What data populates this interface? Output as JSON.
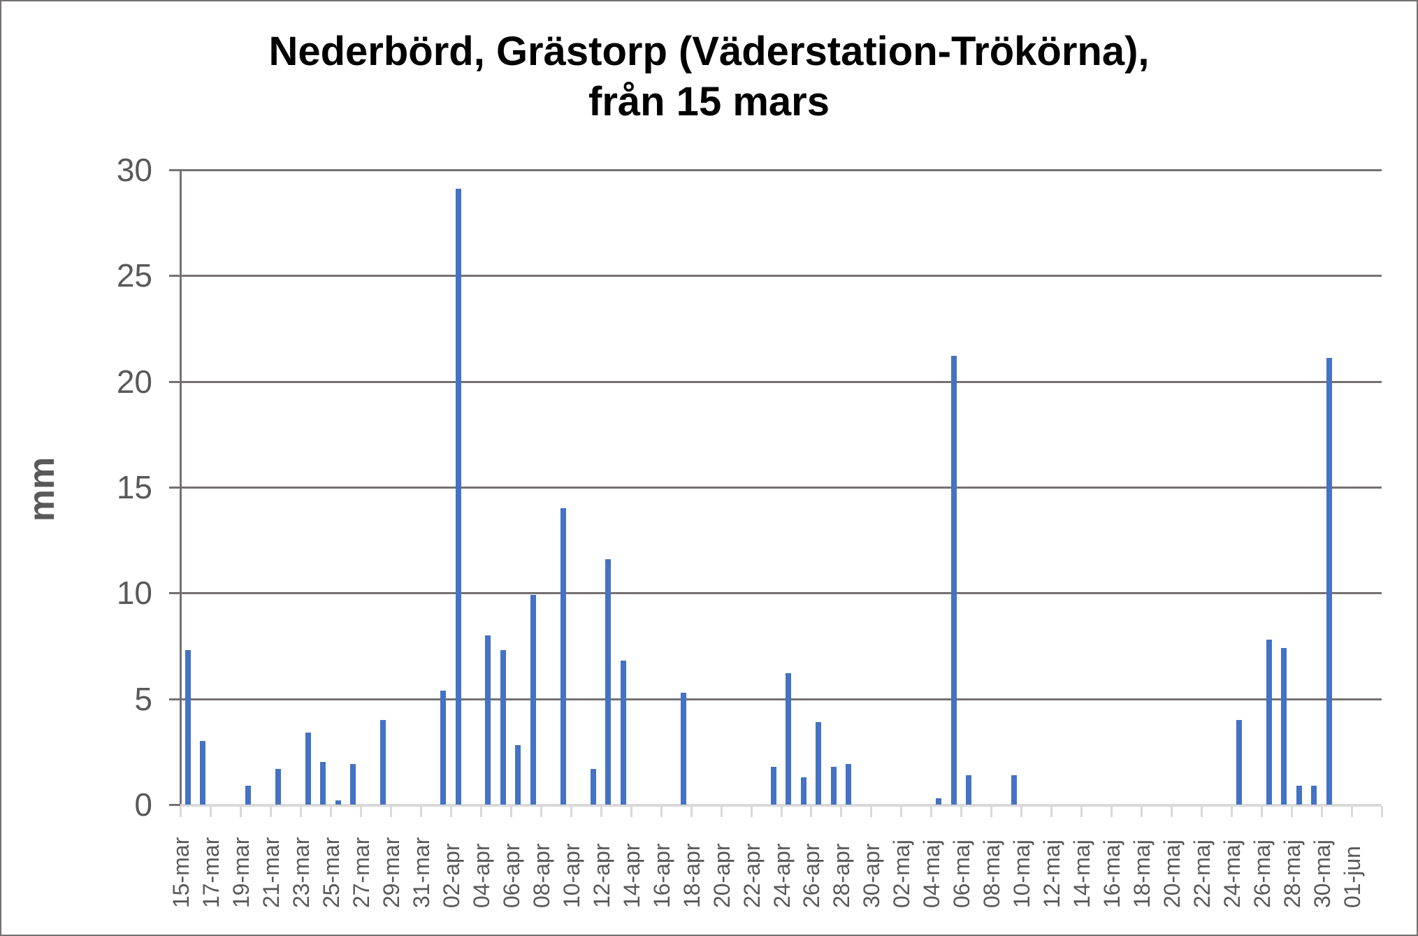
{
  "chart_data": {
    "type": "bar",
    "title": "Nederbörd, Grästorp (Väderstation-Trökörna),",
    "subtitle": "från 15 mars",
    "xlabel": "",
    "ylabel": "mm",
    "ylim": [
      0,
      30
    ],
    "yticks": [
      0,
      5,
      10,
      15,
      20,
      25,
      30
    ],
    "grid": true,
    "legend": null,
    "bar_color": "#4472c4",
    "x_tick_labels": [
      "15-mar",
      "17-mar",
      "19-mar",
      "21-mar",
      "23-mar",
      "25-mar",
      "27-mar",
      "29-mar",
      "31-mar",
      "02-apr",
      "04-apr",
      "06-apr",
      "08-apr",
      "10-apr",
      "12-apr",
      "14-apr",
      "16-apr",
      "18-apr",
      "20-apr",
      "22-apr",
      "24-apr",
      "26-apr",
      "28-apr",
      "30-apr",
      "02-maj",
      "04-maj",
      "06-maj",
      "08-maj",
      "10-maj",
      "12-maj",
      "14-maj",
      "16-maj",
      "18-maj",
      "20-maj",
      "22-maj",
      "24-maj",
      "26-maj",
      "28-maj",
      "30-maj",
      "01-jun"
    ],
    "categories": [
      "15-mar",
      "16-mar",
      "17-mar",
      "18-mar",
      "19-mar",
      "20-mar",
      "21-mar",
      "22-mar",
      "23-mar",
      "24-mar",
      "25-mar",
      "26-mar",
      "27-mar",
      "28-mar",
      "29-mar",
      "30-mar",
      "31-mar",
      "01-apr",
      "02-apr",
      "03-apr",
      "04-apr",
      "05-apr",
      "06-apr",
      "07-apr",
      "08-apr",
      "09-apr",
      "10-apr",
      "11-apr",
      "12-apr",
      "13-apr",
      "14-apr",
      "15-apr",
      "16-apr",
      "17-apr",
      "18-apr",
      "19-apr",
      "20-apr",
      "21-apr",
      "22-apr",
      "23-apr",
      "24-apr",
      "25-apr",
      "26-apr",
      "27-apr",
      "28-apr",
      "29-apr",
      "30-apr",
      "01-maj",
      "02-maj",
      "03-maj",
      "04-maj",
      "05-maj",
      "06-maj",
      "07-maj",
      "08-maj",
      "09-maj",
      "10-maj",
      "11-maj",
      "12-maj",
      "13-maj",
      "14-maj",
      "15-maj",
      "16-maj",
      "17-maj",
      "18-maj",
      "19-maj",
      "20-maj",
      "21-maj",
      "22-maj",
      "23-maj",
      "24-maj",
      "25-maj",
      "26-maj",
      "27-maj",
      "28-maj",
      "29-maj",
      "30-maj",
      "31-maj",
      "01-jun",
      "02-jun"
    ],
    "values": [
      7.3,
      3.0,
      0,
      0,
      0.9,
      0,
      1.7,
      0,
      3.4,
      2.0,
      0.2,
      1.9,
      0,
      4.0,
      0,
      0,
      0,
      5.4,
      29.1,
      0,
      8.0,
      7.3,
      2.8,
      9.9,
      0,
      14.0,
      0,
      1.7,
      11.6,
      6.8,
      0,
      0,
      0,
      5.3,
      0,
      0,
      0,
      0,
      0,
      1.8,
      6.2,
      1.3,
      3.9,
      1.8,
      1.9,
      0,
      0,
      0,
      0,
      0,
      0.3,
      21.2,
      1.4,
      0,
      0,
      1.4,
      0,
      0,
      0,
      0,
      0,
      0,
      0,
      0,
      0,
      0,
      0,
      0,
      0,
      0,
      4.0,
      0,
      7.8,
      7.4,
      0.9,
      0.9,
      21.1,
      0,
      0,
      0
    ]
  }
}
